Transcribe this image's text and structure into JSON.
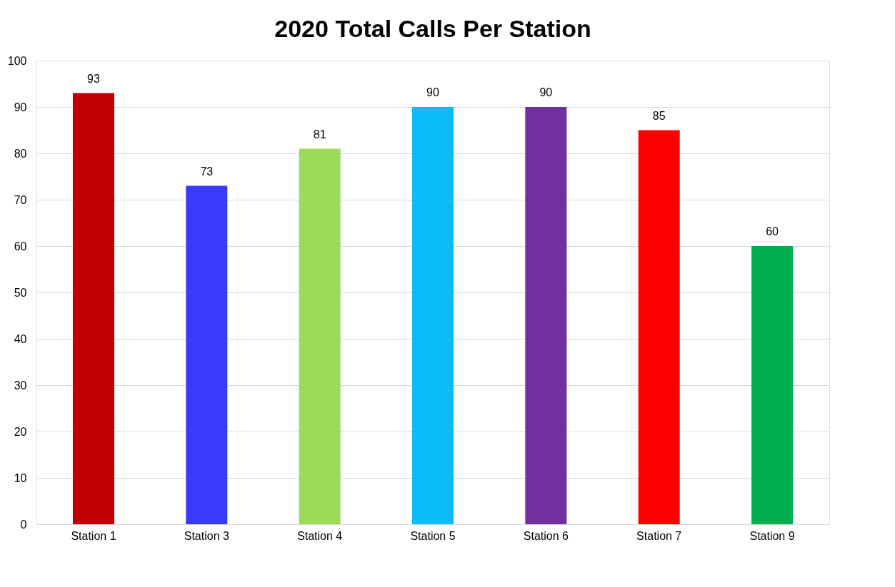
{
  "chart_data": {
    "type": "bar",
    "title": "2020 Total Calls Per Station",
    "categories": [
      "Station 1",
      "Station 3",
      "Station 4",
      "Station 5",
      "Station 6",
      "Station 7",
      "Station 9"
    ],
    "values": [
      93,
      73,
      81,
      90,
      90,
      85,
      60
    ],
    "colors": [
      "#c00000",
      "#3a3aff",
      "#9cdb5a",
      "#0abcf9",
      "#7030a0",
      "#ff0000",
      "#00b050"
    ],
    "ylim": [
      0,
      100
    ],
    "yticks": [
      0,
      10,
      20,
      30,
      40,
      50,
      60,
      70,
      80,
      90,
      100
    ],
    "grid": "y",
    "data_labels": true
  }
}
